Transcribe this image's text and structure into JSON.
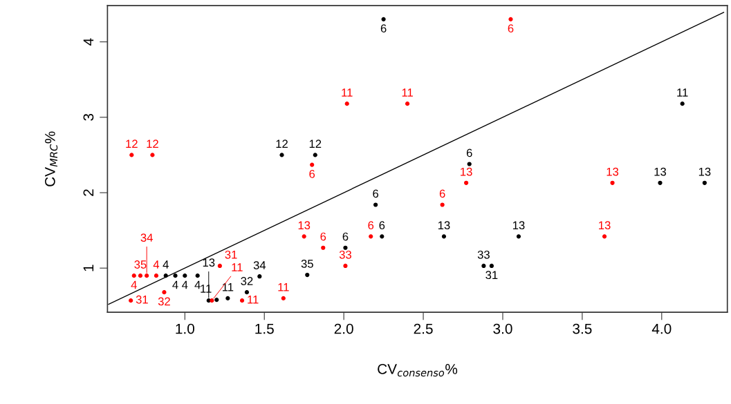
{
  "chart_data": {
    "type": "scatter",
    "xlabel": "CV$_{consenso}$%",
    "ylabel": "CV$_{MRC}$%",
    "xlim": [
      0.513,
      4.413
    ],
    "ylim": [
      0.414,
      4.48
    ],
    "xticks": [
      {
        "value": 1.0,
        "label": "1.0"
      },
      {
        "value": 1.5,
        "label": "1.5"
      },
      {
        "value": 2.0,
        "label": "2.0"
      },
      {
        "value": 2.5,
        "label": "2.5"
      },
      {
        "value": 3.0,
        "label": "3.0"
      },
      {
        "value": 3.5,
        "label": "3.5"
      },
      {
        "value": 4.0,
        "label": "4.0"
      }
    ],
    "yticks": [
      1,
      2,
      3,
      4
    ],
    "grid": false,
    "marker": "circle",
    "series": [
      {
        "color": "#000000",
        "x": [
          2.25,
          1.61,
          1.82,
          4.13,
          2.79,
          3.99,
          4.27,
          2.2,
          2.24,
          2.63,
          3.1,
          2.01,
          2.88,
          2.93,
          0.88,
          0.94,
          1.0,
          1.08,
          1.47,
          1.77,
          1.39,
          1.15,
          1.2,
          1.27
        ],
        "values": [
          4.3,
          2.5,
          2.5,
          3.18,
          2.38,
          2.13,
          2.13,
          1.84,
          1.42,
          1.42,
          1.42,
          1.27,
          1.03,
          1.03,
          0.9,
          0.9,
          0.9,
          0.9,
          0.89,
          0.91,
          0.68,
          0.57,
          0.58,
          0.6
        ]
      },
      {
        "color": "#ff0000",
        "x": [
          3.05,
          2.02,
          2.4,
          0.665,
          0.796,
          1.8,
          2.77,
          3.69,
          2.62,
          1.75,
          1.87,
          2.17,
          3.64,
          2.01,
          1.22,
          0.68,
          0.72,
          0.76,
          0.82,
          0.87,
          0.66,
          1.17,
          1.36,
          1.62
        ],
        "values": [
          4.3,
          3.18,
          3.18,
          2.5,
          2.5,
          2.37,
          2.13,
          2.13,
          1.84,
          1.42,
          1.27,
          1.42,
          1.42,
          1.03,
          1.03,
          0.9,
          0.9,
          0.9,
          0.9,
          0.68,
          0.57,
          0.57,
          0.57,
          0.6
        ]
      },
      {
        "type": "line",
        "marker": "none",
        "color": "#000000",
        "x": [
          0.52,
          4.39
        ],
        "values": [
          0.52,
          4.39
        ]
      }
    ],
    "annotations": [
      {
        "text": "6",
        "x": 2.25,
        "y": 4.3
      },
      {
        "text": "12",
        "x": 1.61,
        "y": 2.5
      },
      {
        "text": "12",
        "x": 1.82,
        "y": 2.5
      },
      {
        "text": "11",
        "x": 4.13,
        "y": 3.18
      },
      {
        "text": "6",
        "x": 2.79,
        "y": 2.38
      },
      {
        "text": "13",
        "x": 3.99,
        "y": 2.13
      },
      {
        "text": "13",
        "x": 4.27,
        "y": 2.13
      },
      {
        "text": "6",
        "x": 2.2,
        "y": 1.84
      },
      {
        "text": "6",
        "x": 2.24,
        "y": 1.42
      },
      {
        "text": "13",
        "x": 2.63,
        "y": 1.42
      },
      {
        "text": "13",
        "x": 3.1,
        "y": 1.42
      },
      {
        "text": "6",
        "x": 2.01,
        "y": 1.27
      },
      {
        "text": "33",
        "x": 2.88,
        "y": 1.03
      },
      {
        "text": "31",
        "x": 2.93,
        "y": 1.03
      },
      {
        "text": "4",
        "x": 0.88,
        "y": 0.9
      },
      {
        "text": "4",
        "x": 0.94,
        "y": 0.9
      },
      {
        "text": "4",
        "x": 1.0,
        "y": 0.9
      },
      {
        "text": "4",
        "x": 1.08,
        "y": 0.9
      },
      {
        "text": "34",
        "x": 1.47,
        "y": 0.89
      },
      {
        "text": "35",
        "x": 1.77,
        "y": 0.91
      },
      {
        "text": "32",
        "x": 1.39,
        "y": 0.68
      },
      {
        "text": "13",
        "x": 1.15,
        "y": 0.57
      },
      {
        "text": "11",
        "x": 1.2,
        "y": 0.58
      },
      {
        "text": "11",
        "x": 1.27,
        "y": 0.6
      },
      {
        "text": "6",
        "x": 3.05,
        "y": 4.3
      },
      {
        "text": "11",
        "x": 2.02,
        "y": 3.18
      },
      {
        "text": "11",
        "x": 2.4,
        "y": 3.18
      },
      {
        "text": "12",
        "x": 0.665,
        "y": 2.5
      },
      {
        "text": "12",
        "x": 0.796,
        "y": 2.5
      },
      {
        "text": "6",
        "x": 1.8,
        "y": 2.37
      },
      {
        "text": "13",
        "x": 2.77,
        "y": 2.13
      },
      {
        "text": "13",
        "x": 3.69,
        "y": 2.13
      },
      {
        "text": "6",
        "x": 2.62,
        "y": 1.84
      },
      {
        "text": "13",
        "x": 1.75,
        "y": 1.42
      },
      {
        "text": "6",
        "x": 1.87,
        "y": 1.27
      },
      {
        "text": "6",
        "x": 2.17,
        "y": 1.42
      },
      {
        "text": "13",
        "x": 3.64,
        "y": 1.42
      },
      {
        "text": "33",
        "x": 2.01,
        "y": 1.03
      },
      {
        "text": "31",
        "x": 1.22,
        "y": 1.03
      },
      {
        "text": "4",
        "x": 0.68,
        "y": 0.9
      },
      {
        "text": "35",
        "x": 0.72,
        "y": 0.9
      },
      {
        "text": "34",
        "x": 0.76,
        "y": 0.9
      },
      {
        "text": "4",
        "x": 0.82,
        "y": 0.9
      },
      {
        "text": "32",
        "x": 0.87,
        "y": 0.68
      },
      {
        "text": "31",
        "x": 0.66,
        "y": 0.57
      },
      {
        "text": "11",
        "x": 1.17,
        "y": 0.57
      },
      {
        "text": "11",
        "x": 1.36,
        "y": 0.57
      },
      {
        "text": "11",
        "x": 1.62,
        "y": 0.6
      }
    ]
  }
}
